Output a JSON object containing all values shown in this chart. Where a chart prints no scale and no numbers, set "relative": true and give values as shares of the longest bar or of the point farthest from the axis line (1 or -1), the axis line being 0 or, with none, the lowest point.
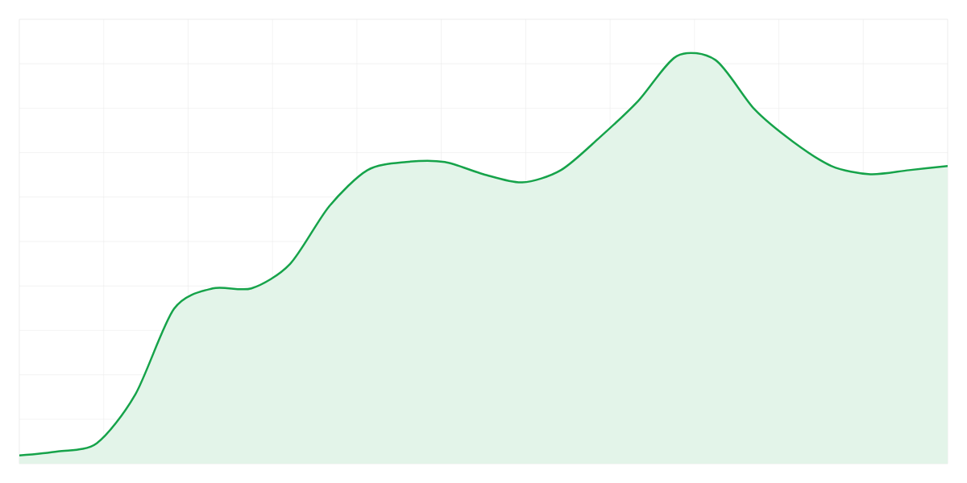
{
  "chart_data": {
    "type": "area",
    "relative": true,
    "color": "#16a34a",
    "grid": true,
    "categories": [
      null,
      null,
      null,
      null,
      null,
      null,
      null,
      null,
      null,
      null,
      null,
      null,
      null,
      null,
      null,
      null,
      null,
      null,
      null,
      null,
      null,
      null,
      null,
      null,
      null
    ],
    "values": [
      0.02,
      0.03,
      0.05,
      0.17,
      0.38,
      0.43,
      0.43,
      0.49,
      0.63,
      0.72,
      0.74,
      0.74,
      0.71,
      0.69,
      0.72,
      0.8,
      0.89,
      1.0,
      0.99,
      0.87,
      0.79,
      0.73,
      0.71,
      0.72,
      0.73
    ]
  }
}
